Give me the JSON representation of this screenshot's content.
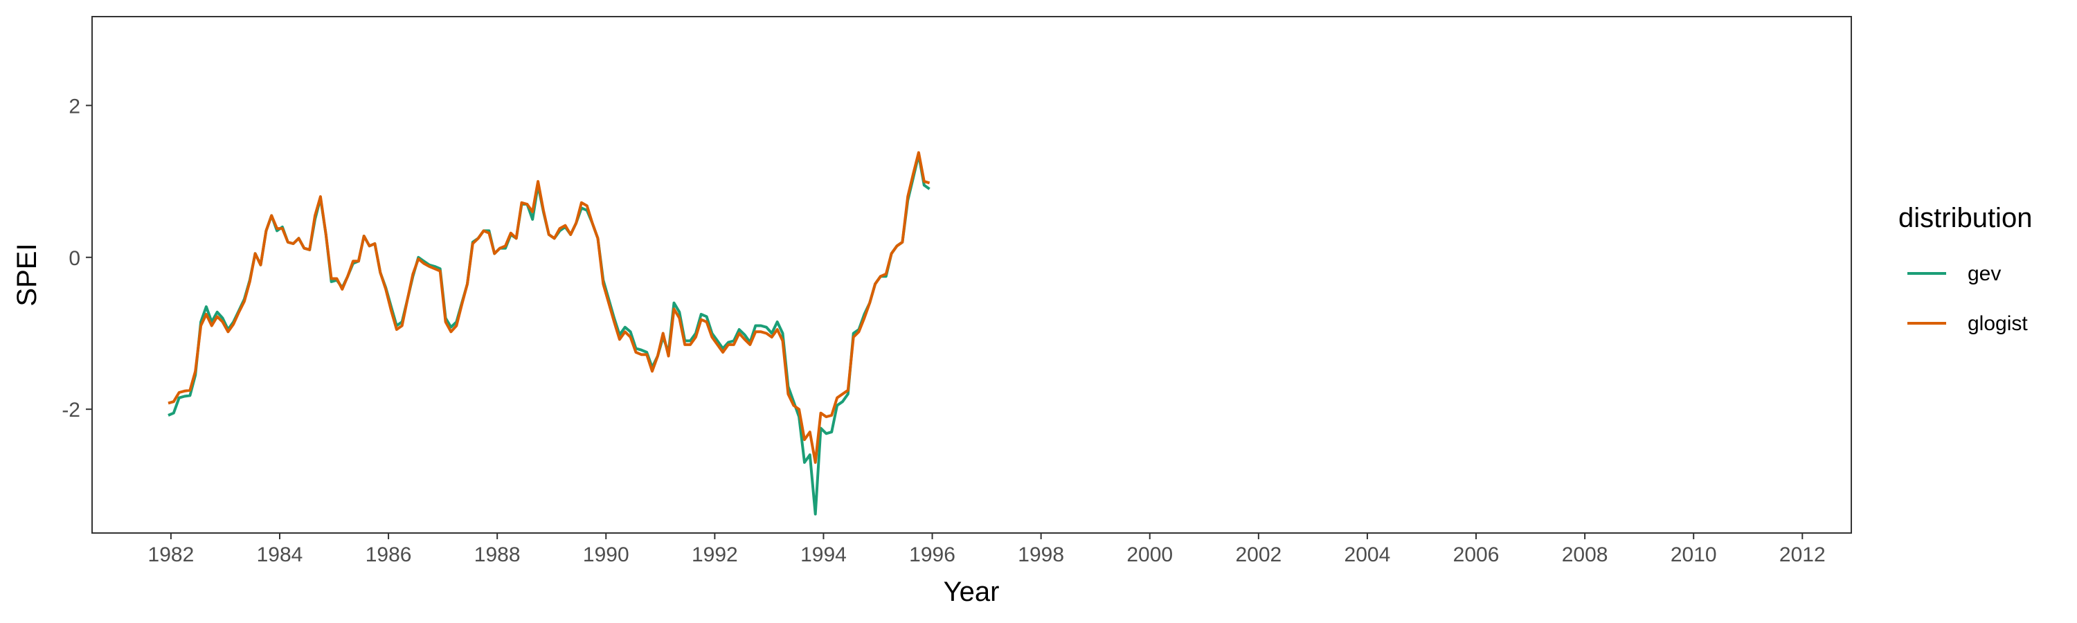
{
  "chart_data": {
    "type": "line",
    "xlabel": "Year",
    "ylabel": "SPEI",
    "xlim": [
      1980.55,
      2012.9
    ],
    "ylim": [
      -3.63,
      3.17
    ],
    "x_ticks": [
      1982,
      1984,
      1986,
      1988,
      1990,
      1992,
      1994,
      1996,
      1998,
      2000,
      2002,
      2004,
      2006,
      2008,
      2010,
      2012
    ],
    "x_tick_labels": [
      "1982",
      "1984",
      "1986",
      "1988",
      "1990",
      "1992",
      "1994",
      "1996",
      "1998",
      "2000",
      "2002",
      "2004",
      "2006",
      "2008",
      "2010",
      "2012"
    ],
    "y_ticks": [
      -2,
      0,
      2
    ],
    "y_tick_labels": [
      "-2",
      "0",
      "2"
    ],
    "grid": false,
    "legend_position": "right",
    "legend_title": "distribution",
    "series": [
      {
        "name": "gev",
        "color": "#1B9E77",
        "points": [
          [
            1981.95,
            -2.08
          ],
          [
            1982.05,
            -2.05
          ],
          [
            1982.15,
            -1.85
          ],
          [
            1982.25,
            -1.83
          ],
          [
            1982.35,
            -1.82
          ],
          [
            1982.45,
            -1.55
          ],
          [
            1982.55,
            -0.85
          ],
          [
            1982.65,
            -0.65
          ],
          [
            1982.75,
            -0.85
          ],
          [
            1982.85,
            -0.72
          ],
          [
            1982.95,
            -0.8
          ],
          [
            1983.05,
            -0.95
          ],
          [
            1983.15,
            -0.85
          ],
          [
            1983.25,
            -0.7
          ],
          [
            1983.35,
            -0.55
          ],
          [
            1983.45,
            -0.3
          ],
          [
            1983.55,
            0.05
          ],
          [
            1983.65,
            -0.1
          ],
          [
            1983.75,
            0.35
          ],
          [
            1983.85,
            0.55
          ],
          [
            1983.95,
            0.35
          ],
          [
            1984.05,
            0.4
          ],
          [
            1984.15,
            0.2
          ],
          [
            1984.25,
            0.18
          ],
          [
            1984.35,
            0.25
          ],
          [
            1984.45,
            0.12
          ],
          [
            1984.55,
            0.1
          ],
          [
            1984.65,
            0.5
          ],
          [
            1984.75,
            0.78
          ],
          [
            1984.85,
            0.3
          ],
          [
            1984.95,
            -0.32
          ],
          [
            1985.05,
            -0.3
          ],
          [
            1985.15,
            -0.4
          ],
          [
            1985.25,
            -0.25
          ],
          [
            1985.35,
            -0.08
          ],
          [
            1985.45,
            -0.05
          ],
          [
            1985.55,
            0.28
          ],
          [
            1985.65,
            0.15
          ],
          [
            1985.75,
            0.18
          ],
          [
            1985.85,
            -0.2
          ],
          [
            1985.95,
            -0.4
          ],
          [
            1986.05,
            -0.65
          ],
          [
            1986.15,
            -0.9
          ],
          [
            1986.25,
            -0.85
          ],
          [
            1986.35,
            -0.55
          ],
          [
            1986.45,
            -0.25
          ],
          [
            1986.55,
            0.0
          ],
          [
            1986.65,
            -0.05
          ],
          [
            1986.75,
            -0.1
          ],
          [
            1986.85,
            -0.12
          ],
          [
            1986.95,
            -0.15
          ],
          [
            1987.05,
            -0.8
          ],
          [
            1987.15,
            -0.92
          ],
          [
            1987.25,
            -0.85
          ],
          [
            1987.35,
            -0.6
          ],
          [
            1987.45,
            -0.35
          ],
          [
            1987.55,
            0.2
          ],
          [
            1987.65,
            0.25
          ],
          [
            1987.75,
            0.35
          ],
          [
            1987.85,
            0.35
          ],
          [
            1987.95,
            0.05
          ],
          [
            1988.05,
            0.12
          ],
          [
            1988.15,
            0.12
          ],
          [
            1988.25,
            0.3
          ],
          [
            1988.35,
            0.25
          ],
          [
            1988.45,
            0.7
          ],
          [
            1988.55,
            0.7
          ],
          [
            1988.65,
            0.5
          ],
          [
            1988.75,
            0.95
          ],
          [
            1988.85,
            0.6
          ],
          [
            1988.95,
            0.3
          ],
          [
            1989.05,
            0.25
          ],
          [
            1989.15,
            0.35
          ],
          [
            1989.25,
            0.4
          ],
          [
            1989.35,
            0.3
          ],
          [
            1989.45,
            0.45
          ],
          [
            1989.55,
            0.65
          ],
          [
            1989.65,
            0.62
          ],
          [
            1989.75,
            0.45
          ],
          [
            1989.85,
            0.25
          ],
          [
            1989.95,
            -0.3
          ],
          [
            1990.05,
            -0.55
          ],
          [
            1990.15,
            -0.8
          ],
          [
            1990.25,
            -1.02
          ],
          [
            1990.35,
            -0.92
          ],
          [
            1990.45,
            -0.98
          ],
          [
            1990.55,
            -1.2
          ],
          [
            1990.65,
            -1.22
          ],
          [
            1990.75,
            -1.25
          ],
          [
            1990.85,
            -1.45
          ],
          [
            1990.95,
            -1.3
          ],
          [
            1991.05,
            -1.05
          ],
          [
            1991.15,
            -1.25
          ],
          [
            1991.25,
            -0.6
          ],
          [
            1991.35,
            -0.72
          ],
          [
            1991.45,
            -1.1
          ],
          [
            1991.55,
            -1.1
          ],
          [
            1991.65,
            -1.0
          ],
          [
            1991.75,
            -0.75
          ],
          [
            1991.85,
            -0.78
          ],
          [
            1991.95,
            -1.0
          ],
          [
            1992.05,
            -1.1
          ],
          [
            1992.15,
            -1.2
          ],
          [
            1992.25,
            -1.12
          ],
          [
            1992.35,
            -1.1
          ],
          [
            1992.45,
            -0.95
          ],
          [
            1992.55,
            -1.02
          ],
          [
            1992.65,
            -1.12
          ],
          [
            1992.75,
            -0.9
          ],
          [
            1992.85,
            -0.9
          ],
          [
            1992.95,
            -0.92
          ],
          [
            1993.05,
            -1.0
          ],
          [
            1993.15,
            -0.85
          ],
          [
            1993.25,
            -1.0
          ],
          [
            1993.35,
            -1.7
          ],
          [
            1993.45,
            -1.9
          ],
          [
            1993.55,
            -2.1
          ],
          [
            1993.65,
            -2.7
          ],
          [
            1993.75,
            -2.6
          ],
          [
            1993.85,
            -3.38
          ],
          [
            1993.95,
            -2.25
          ],
          [
            1994.05,
            -2.32
          ],
          [
            1994.15,
            -2.3
          ],
          [
            1994.25,
            -1.95
          ],
          [
            1994.35,
            -1.9
          ],
          [
            1994.45,
            -1.8
          ],
          [
            1994.55,
            -1.0
          ],
          [
            1994.65,
            -0.95
          ],
          [
            1994.75,
            -0.75
          ],
          [
            1994.85,
            -0.6
          ],
          [
            1994.95,
            -0.35
          ],
          [
            1995.05,
            -0.25
          ],
          [
            1995.15,
            -0.25
          ],
          [
            1995.25,
            0.05
          ],
          [
            1995.35,
            0.15
          ],
          [
            1995.45,
            0.2
          ],
          [
            1995.55,
            0.75
          ],
          [
            1995.65,
            1.05
          ],
          [
            1995.75,
            1.35
          ],
          [
            1995.85,
            0.95
          ],
          [
            1995.95,
            0.9
          ]
        ]
      },
      {
        "name": "glogist",
        "color": "#D95F02",
        "points": [
          [
            1981.95,
            -1.92
          ],
          [
            1982.05,
            -1.9
          ],
          [
            1982.15,
            -1.78
          ],
          [
            1982.25,
            -1.76
          ],
          [
            1982.35,
            -1.75
          ],
          [
            1982.45,
            -1.5
          ],
          [
            1982.55,
            -0.9
          ],
          [
            1982.65,
            -0.75
          ],
          [
            1982.75,
            -0.9
          ],
          [
            1982.85,
            -0.78
          ],
          [
            1982.95,
            -0.85
          ],
          [
            1983.05,
            -0.98
          ],
          [
            1983.15,
            -0.88
          ],
          [
            1983.25,
            -0.72
          ],
          [
            1983.35,
            -0.58
          ],
          [
            1983.45,
            -0.32
          ],
          [
            1983.55,
            0.05
          ],
          [
            1983.65,
            -0.1
          ],
          [
            1983.75,
            0.35
          ],
          [
            1983.85,
            0.55
          ],
          [
            1983.95,
            0.38
          ],
          [
            1984.05,
            0.38
          ],
          [
            1984.15,
            0.2
          ],
          [
            1984.25,
            0.18
          ],
          [
            1984.35,
            0.25
          ],
          [
            1984.45,
            0.12
          ],
          [
            1984.55,
            0.1
          ],
          [
            1984.65,
            0.55
          ],
          [
            1984.75,
            0.8
          ],
          [
            1984.85,
            0.3
          ],
          [
            1984.95,
            -0.28
          ],
          [
            1985.05,
            -0.28
          ],
          [
            1985.15,
            -0.42
          ],
          [
            1985.25,
            -0.25
          ],
          [
            1985.35,
            -0.05
          ],
          [
            1985.45,
            -0.05
          ],
          [
            1985.55,
            0.28
          ],
          [
            1985.65,
            0.15
          ],
          [
            1985.75,
            0.18
          ],
          [
            1985.85,
            -0.2
          ],
          [
            1985.95,
            -0.42
          ],
          [
            1986.05,
            -0.7
          ],
          [
            1986.15,
            -0.95
          ],
          [
            1986.25,
            -0.9
          ],
          [
            1986.35,
            -0.55
          ],
          [
            1986.45,
            -0.22
          ],
          [
            1986.55,
            -0.02
          ],
          [
            1986.65,
            -0.08
          ],
          [
            1986.75,
            -0.12
          ],
          [
            1986.85,
            -0.15
          ],
          [
            1986.95,
            -0.18
          ],
          [
            1987.05,
            -0.85
          ],
          [
            1987.15,
            -0.98
          ],
          [
            1987.25,
            -0.9
          ],
          [
            1987.35,
            -0.62
          ],
          [
            1987.45,
            -0.35
          ],
          [
            1987.55,
            0.18
          ],
          [
            1987.65,
            0.25
          ],
          [
            1987.75,
            0.35
          ],
          [
            1987.85,
            0.32
          ],
          [
            1987.95,
            0.05
          ],
          [
            1988.05,
            0.12
          ],
          [
            1988.15,
            0.15
          ],
          [
            1988.25,
            0.32
          ],
          [
            1988.35,
            0.25
          ],
          [
            1988.45,
            0.72
          ],
          [
            1988.55,
            0.7
          ],
          [
            1988.65,
            0.6
          ],
          [
            1988.75,
            1.0
          ],
          [
            1988.85,
            0.62
          ],
          [
            1988.95,
            0.3
          ],
          [
            1989.05,
            0.25
          ],
          [
            1989.15,
            0.38
          ],
          [
            1989.25,
            0.42
          ],
          [
            1989.35,
            0.3
          ],
          [
            1989.45,
            0.45
          ],
          [
            1989.55,
            0.72
          ],
          [
            1989.65,
            0.68
          ],
          [
            1989.75,
            0.45
          ],
          [
            1989.85,
            0.25
          ],
          [
            1989.95,
            -0.35
          ],
          [
            1990.05,
            -0.6
          ],
          [
            1990.15,
            -0.85
          ],
          [
            1990.25,
            -1.08
          ],
          [
            1990.35,
            -0.98
          ],
          [
            1990.45,
            -1.05
          ],
          [
            1990.55,
            -1.25
          ],
          [
            1990.65,
            -1.28
          ],
          [
            1990.75,
            -1.28
          ],
          [
            1990.85,
            -1.5
          ],
          [
            1990.95,
            -1.3
          ],
          [
            1991.05,
            -1.0
          ],
          [
            1991.15,
            -1.3
          ],
          [
            1991.25,
            -0.68
          ],
          [
            1991.35,
            -0.8
          ],
          [
            1991.45,
            -1.15
          ],
          [
            1991.55,
            -1.15
          ],
          [
            1991.65,
            -1.05
          ],
          [
            1991.75,
            -0.82
          ],
          [
            1991.85,
            -0.85
          ],
          [
            1991.95,
            -1.05
          ],
          [
            1992.05,
            -1.15
          ],
          [
            1992.15,
            -1.25
          ],
          [
            1992.25,
            -1.15
          ],
          [
            1992.35,
            -1.15
          ],
          [
            1992.45,
            -1.0
          ],
          [
            1992.55,
            -1.08
          ],
          [
            1992.65,
            -1.15
          ],
          [
            1992.75,
            -0.98
          ],
          [
            1992.85,
            -0.98
          ],
          [
            1992.95,
            -1.0
          ],
          [
            1993.05,
            -1.05
          ],
          [
            1993.15,
            -0.95
          ],
          [
            1993.25,
            -1.1
          ],
          [
            1993.35,
            -1.8
          ],
          [
            1993.45,
            -1.95
          ],
          [
            1993.55,
            -2.0
          ],
          [
            1993.65,
            -2.4
          ],
          [
            1993.75,
            -2.3
          ],
          [
            1993.85,
            -2.7
          ],
          [
            1993.95,
            -2.05
          ],
          [
            1994.05,
            -2.1
          ],
          [
            1994.15,
            -2.08
          ],
          [
            1994.25,
            -1.85
          ],
          [
            1994.35,
            -1.8
          ],
          [
            1994.45,
            -1.75
          ],
          [
            1994.55,
            -1.05
          ],
          [
            1994.65,
            -0.98
          ],
          [
            1994.75,
            -0.8
          ],
          [
            1994.85,
            -0.6
          ],
          [
            1994.95,
            -0.35
          ],
          [
            1995.05,
            -0.25
          ],
          [
            1995.15,
            -0.22
          ],
          [
            1995.25,
            0.05
          ],
          [
            1995.35,
            0.15
          ],
          [
            1995.45,
            0.2
          ],
          [
            1995.55,
            0.8
          ],
          [
            1995.65,
            1.1
          ],
          [
            1995.75,
            1.38
          ],
          [
            1995.85,
            1.0
          ],
          [
            1995.95,
            0.98
          ]
        ]
      }
    ]
  }
}
